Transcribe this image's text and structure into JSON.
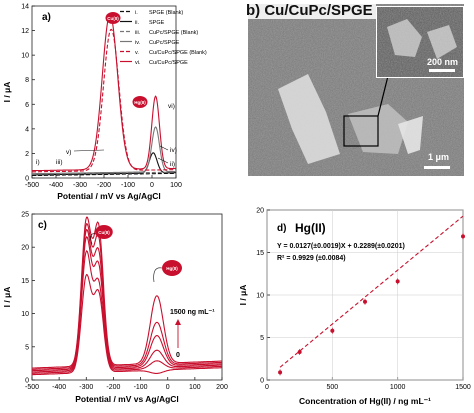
{
  "panel_a": {
    "label": "a)",
    "xlabel": "Potential / mV vs Ag/AgCl",
    "ylabel": "I / μA",
    "legend": [
      {
        "roman": "i.",
        "name": "SPGE (Blank)",
        "color": "#111111",
        "dash": "4,2"
      },
      {
        "roman": "ii.",
        "name": "SPGE",
        "color": "#111111",
        "dash": ""
      },
      {
        "roman": "iii.",
        "name": "CuPc/SPGE (Blank)",
        "color": "#777777",
        "dash": "4,2"
      },
      {
        "roman": "iv.",
        "name": "CuPc/SPGE",
        "color": "#777777",
        "dash": ""
      },
      {
        "roman": "v.",
        "name": "Cu/CuPc/SPGE (Blank)",
        "color": "#c8102e",
        "dash": "4,2"
      },
      {
        "roman": "vi.",
        "name": "Cu/CuPc/SPGE",
        "color": "#c8102e",
        "dash": ""
      }
    ],
    "peak_labels": {
      "cu": "Cu(II)",
      "hg": "Hg(II)"
    },
    "curve_labels": {
      "i": "i)",
      "iii": "iii)",
      "v": "v)",
      "ii": "ii)",
      "iv": "iv)",
      "vi": "vi)"
    }
  },
  "panel_b": {
    "label": "b) Cu/CuPc/SPGE",
    "scale_main": "1 μm",
    "scale_inset": "200 nm"
  },
  "panel_c": {
    "label": "c)",
    "xlabel": "Potential / mV vs Ag/AgCl",
    "ylabel": "I / μA",
    "peak_labels": {
      "cu": "Cu(II)",
      "hg": "Hg(II)"
    },
    "conc_top": "1500 ng mL⁻¹",
    "conc_bottom": "0"
  },
  "panel_d": {
    "label": "d)",
    "title": "Hg(II)",
    "xlabel": "Concentration of Hg(II) / ng mL⁻¹",
    "ylabel": "I / μA",
    "equation": "Y = 0.0127(±0.0019)X + 0.2289(±0.0201)",
    "r2": "R² = 0.9929 (±0.0084)"
  },
  "chart_data": [
    {
      "type": "line",
      "panel": "a",
      "xlim": [
        -500,
        100
      ],
      "ylim": [
        0,
        14
      ],
      "xticks": [
        -500,
        -400,
        -300,
        -200,
        -100,
        0,
        100
      ],
      "yticks": [
        0,
        2,
        4,
        6,
        8,
        10,
        12,
        14
      ],
      "series": [
        {
          "name": "SPGE (Blank)",
          "peaks": []
        },
        {
          "name": "SPGE",
          "peaks": [
            {
              "x": 5,
              "y": 1.9
            }
          ]
        },
        {
          "name": "CuPc/SPGE (Blank)",
          "peaks": []
        },
        {
          "name": "CuPc/SPGE",
          "peaks": [
            {
              "x": 15,
              "y": 4.0
            }
          ]
        },
        {
          "name": "Cu/CuPc/SPGE (Blank)",
          "peaks": [
            {
              "x": -170,
              "y": 12.0
            }
          ]
        },
        {
          "name": "Cu/CuPc/SPGE",
          "peaks": [
            {
              "x": -175,
              "y": 13.2
            },
            {
              "x": 15,
              "y": 6.5
            }
          ]
        }
      ]
    },
    {
      "type": "line",
      "panel": "c",
      "xlim": [
        -500,
        200
      ],
      "ylim": [
        0,
        25
      ],
      "xticks": [
        -500,
        -400,
        -300,
        -200,
        -100,
        0,
        100,
        200
      ],
      "yticks": [
        0,
        5,
        10,
        15,
        20,
        25
      ],
      "series": [
        {
          "name": "0",
          "peaks": [
            {
              "x": -300,
              "y": 15.0
            },
            {
              "x": -255,
              "y": 12.5
            },
            {
              "x": -40,
              "y": 0.3
            }
          ]
        },
        {
          "name": "",
          "peaks": [
            {
              "x": -300,
              "y": 18.5
            },
            {
              "x": -255,
              "y": 14.0
            },
            {
              "x": -40,
              "y": 2.2
            }
          ]
        },
        {
          "name": "",
          "peaks": [
            {
              "x": -300,
              "y": 20.5
            },
            {
              "x": -255,
              "y": 16.5
            },
            {
              "x": -40,
              "y": 3.8
            }
          ]
        },
        {
          "name": "",
          "peaks": [
            {
              "x": -300,
              "y": 21.5
            },
            {
              "x": -255,
              "y": 18.5
            },
            {
              "x": -40,
              "y": 6.0
            }
          ]
        },
        {
          "name": "",
          "peaks": [
            {
              "x": -300,
              "y": 22.3
            },
            {
              "x": -255,
              "y": 20.5
            },
            {
              "x": -40,
              "y": 8.0
            }
          ]
        },
        {
          "name": "1500 ng mL⁻¹",
          "peaks": [
            {
              "x": -300,
              "y": 23.2
            },
            {
              "x": -255,
              "y": 22.3
            },
            {
              "x": -40,
              "y": 12.0
            }
          ]
        }
      ]
    },
    {
      "type": "scatter",
      "panel": "d",
      "xlim": [
        0,
        1500
      ],
      "ylim": [
        0,
        20
      ],
      "xticks": [
        0,
        500,
        1000,
        1500
      ],
      "yticks": [
        0,
        5,
        10,
        15,
        20
      ],
      "points": [
        {
          "x": 100,
          "y": 0.9
        },
        {
          "x": 250,
          "y": 3.3
        },
        {
          "x": 500,
          "y": 5.8
        },
        {
          "x": 750,
          "y": 9.2
        },
        {
          "x": 1000,
          "y": 11.6
        },
        {
          "x": 1500,
          "y": 16.9
        }
      ],
      "fit": {
        "slope": 0.0127,
        "intercept": 0.2289
      }
    }
  ]
}
